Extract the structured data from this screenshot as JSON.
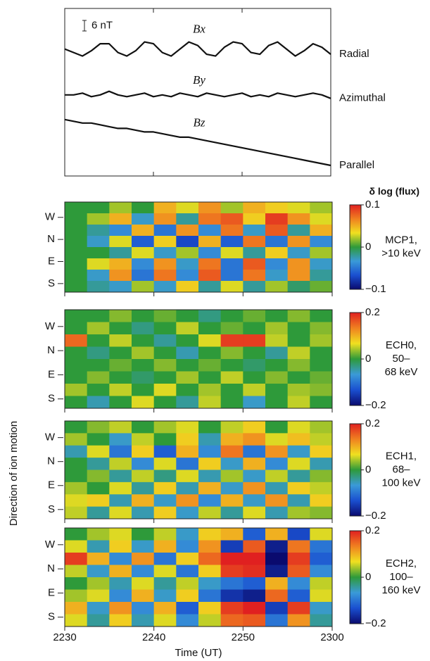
{
  "chart_data": [
    {
      "type": "line",
      "x": [
        0,
        1,
        2,
        3,
        4,
        5,
        6,
        7,
        8,
        9,
        10,
        11,
        12,
        13,
        14,
        15,
        16,
        17,
        18,
        19,
        20,
        21,
        22,
        23,
        24,
        25,
        26,
        27,
        28,
        29,
        30
      ],
      "xlim": [
        0,
        30
      ],
      "ylim": [
        0,
        95
      ],
      "scale_bar": {
        "value": 6,
        "label": "6 nT"
      },
      "series": [
        {
          "name": "Bx",
          "label": "Radial",
          "color": "#111111",
          "values": [
            72,
            70,
            68,
            71,
            75,
            75,
            70,
            68,
            71,
            76,
            75,
            70,
            68,
            72,
            76,
            74,
            69,
            68,
            73,
            76,
            75,
            70,
            69,
            74,
            76,
            72,
            68,
            71,
            75,
            73,
            69
          ]
        },
        {
          "name": "By",
          "label": "Azimuthal",
          "color": "#111111",
          "values": [
            46,
            46,
            47,
            45,
            46,
            48,
            46,
            45,
            46,
            47,
            45,
            46,
            45,
            47,
            46,
            45,
            47,
            46,
            45,
            46,
            47,
            45,
            46,
            45,
            47,
            46,
            45,
            46,
            47,
            46,
            44
          ]
        },
        {
          "name": "Bz",
          "label": "Parallel",
          "color": "#111111",
          "values": [
            32,
            31,
            30,
            30,
            29,
            28,
            27,
            27,
            26,
            25,
            25,
            24,
            23,
            22,
            22,
            21,
            20,
            19,
            18,
            17,
            16,
            15,
            14,
            13,
            12,
            11,
            10,
            9,
            8,
            7,
            6
          ]
        }
      ]
    },
    {
      "type": "heatmap",
      "colorbar_title": "δ log (flux)",
      "label": [
        "MCP1,",
        ">10 keV"
      ],
      "directions": [
        "W",
        "N",
        "E",
        "S"
      ],
      "xlim": [
        0,
        30
      ],
      "clim": [
        -0.1,
        0.1
      ],
      "cticks": [
        0.1,
        0,
        {
          "value": -0.1,
          "label": "−0.1"
        }
      ],
      "colorscale": [
        "#0a0a6e",
        "#1a4fd0",
        "#3a9ad8",
        "#2e9a3a",
        "#f0e020",
        "#f08020",
        "#e02020"
      ],
      "z": [
        [
          0,
          0,
          0.02,
          0,
          0.05,
          0.03,
          0.06,
          0.02,
          0.05,
          0.04,
          0.03,
          0.02
        ],
        [
          0,
          0.02,
          0.05,
          -0.03,
          0.06,
          -0.02,
          0.07,
          0.08,
          0.04,
          0.09,
          0.06,
          0.03
        ],
        [
          0,
          -0.02,
          -0.04,
          0.05,
          -0.05,
          0.06,
          -0.04,
          0.07,
          -0.03,
          0.08,
          -0.02,
          0.05
        ],
        [
          0,
          -0.03,
          0.03,
          -0.06,
          0.04,
          -0.07,
          0.05,
          -0.06,
          0.07,
          -0.05,
          0.06,
          -0.04
        ],
        [
          0,
          0,
          -0.02,
          0.03,
          -0.03,
          0.02,
          -0.04,
          0.03,
          -0.02,
          0.04,
          -0.03,
          0.02
        ],
        [
          0,
          0.03,
          0.05,
          -0.04,
          0.06,
          -0.03,
          0.07,
          -0.05,
          0.08,
          -0.04,
          0.06,
          -0.03
        ],
        [
          0,
          -0.03,
          0.06,
          -0.05,
          0.07,
          -0.04,
          0.08,
          -0.05,
          0.07,
          -0.03,
          0.06,
          -0.02
        ],
        [
          0,
          -0.02,
          -0.03,
          0.02,
          -0.03,
          0.04,
          -0.02,
          0.03,
          -0.02,
          0.02,
          -0.01,
          0.01
        ]
      ]
    },
    {
      "type": "heatmap",
      "label": [
        "ECH0,",
        "50–",
        "68 keV"
      ],
      "ylabel": "Direction of ion motion",
      "directions": [
        "W",
        "N",
        "E",
        "S"
      ],
      "xlim": [
        0,
        30
      ],
      "clim": [
        -0.2,
        0.2
      ],
      "cticks": [
        0.2,
        0,
        {
          "value": -0.2,
          "label": "−0.2"
        }
      ],
      "colorscale": [
        "#0a0a6e",
        "#1a4fd0",
        "#3a9ad8",
        "#2e9a3a",
        "#f0e020",
        "#f08020",
        "#e02020"
      ],
      "z": [
        [
          0,
          0,
          0.03,
          0,
          0.02,
          0,
          -0.03,
          0,
          0.02,
          0,
          0.03,
          0
        ],
        [
          0,
          0.04,
          0,
          -0.03,
          0,
          0.05,
          0,
          0.02,
          0,
          0.04,
          0,
          0.03
        ],
        [
          0.15,
          0,
          0.05,
          0,
          -0.04,
          0,
          0.06,
          0.18,
          0.18,
          0.05,
          0,
          0.04
        ],
        [
          0,
          -0.03,
          0,
          0.04,
          0,
          -0.05,
          0,
          0.03,
          0,
          -0.04,
          0.05,
          0
        ],
        [
          0,
          0,
          0.02,
          0,
          0.03,
          0,
          0.02,
          0,
          -0.02,
          0,
          0.03,
          0
        ],
        [
          0,
          0.03,
          0,
          -0.02,
          0,
          0.04,
          0,
          0.05,
          0,
          0.03,
          0,
          0.02
        ],
        [
          0.04,
          0,
          0.05,
          0,
          0.06,
          0,
          0.04,
          0,
          0.05,
          0,
          0.04,
          0.03
        ],
        [
          0,
          -0.05,
          0,
          0.06,
          0,
          -0.04,
          0.05,
          0,
          -0.06,
          0,
          0.05,
          0
        ]
      ]
    },
    {
      "type": "heatmap",
      "label": [
        "ECH1,",
        "68–",
        "100 keV"
      ],
      "directions": [
        "W",
        "N",
        "E",
        "S"
      ],
      "xlim": [
        0,
        30
      ],
      "clim": [
        -0.2,
        0.2
      ],
      "cticks": [
        0.2,
        0,
        {
          "value": -0.2,
          "label": "−0.2"
        }
      ],
      "colorscale": [
        "#0a0a6e",
        "#1a4fd0",
        "#3a9ad8",
        "#2e9a3a",
        "#f0e020",
        "#f08020",
        "#e02020"
      ],
      "z": [
        [
          0,
          0.03,
          0.05,
          0,
          0.04,
          0.06,
          0,
          0.05,
          0.08,
          0,
          0.06,
          0.04
        ],
        [
          0.04,
          0,
          -0.06,
          0.05,
          0,
          0.08,
          -0.05,
          0.1,
          0.12,
          0.06,
          0.09,
          0.05
        ],
        [
          -0.05,
          0.06,
          -0.1,
          0.08,
          -0.12,
          0.1,
          -0.08,
          0.14,
          -0.1,
          0.12,
          -0.06,
          0.08
        ],
        [
          0,
          -0.04,
          0.05,
          -0.08,
          0.06,
          -0.1,
          0.08,
          -0.06,
          0.1,
          -0.08,
          0.06,
          -0.05
        ],
        [
          0,
          0.03,
          -0.04,
          0.05,
          -0.03,
          0.06,
          -0.05,
          0.04,
          -0.06,
          0.05,
          -0.04,
          0.03
        ],
        [
          0.04,
          0,
          0.06,
          -0.04,
          0.08,
          -0.05,
          0.1,
          -0.06,
          0.12,
          -0.05,
          0.08,
          0.05
        ],
        [
          0.06,
          0.08,
          -0.05,
          0.1,
          -0.06,
          0.12,
          -0.08,
          0.1,
          -0.06,
          0.12,
          -0.05,
          0.08
        ],
        [
          0.05,
          -0.04,
          0.06,
          -0.05,
          0.08,
          -0.06,
          0.05,
          -0.04,
          0.06,
          -0.05,
          0.04,
          0.03
        ]
      ]
    },
    {
      "type": "heatmap",
      "label": [
        "ECH2,",
        "100–",
        "160 keV"
      ],
      "xlabel": "Time (UT)",
      "directions": [
        "W",
        "N",
        "E",
        "S"
      ],
      "xlim": [
        0,
        30
      ],
      "xticks": [
        {
          "value": 0,
          "label": "2230"
        },
        {
          "value": 10,
          "label": "2240"
        },
        {
          "value": 20,
          "label": "2250"
        },
        {
          "value": 30,
          "label": "2300"
        }
      ],
      "clim": [
        -0.2,
        0.2
      ],
      "cticks": [
        0.2,
        0,
        {
          "value": -0.2,
          "label": "−0.2"
        }
      ],
      "colorscale": [
        "#0a0a6e",
        "#1a4fd0",
        "#3a9ad8",
        "#2e9a3a",
        "#f0e020",
        "#f08020",
        "#e02020"
      ],
      "z": [
        [
          0,
          0.04,
          0.06,
          0,
          0.05,
          -0.06,
          0.08,
          0.1,
          -0.12,
          0.1,
          -0.14,
          0.06
        ],
        [
          0.06,
          -0.05,
          0.08,
          -0.06,
          0.1,
          -0.08,
          0.12,
          -0.15,
          0.16,
          -0.18,
          0.14,
          -0.1
        ],
        [
          0.18,
          0.1,
          -0.08,
          0.12,
          -0.1,
          0.08,
          0.15,
          0.2,
          0.2,
          -0.2,
          0.18,
          -0.12
        ],
        [
          0.05,
          -0.06,
          0.1,
          -0.08,
          0.06,
          -0.1,
          0.08,
          0.18,
          0.19,
          -0.18,
          0.16,
          -0.08
        ],
        [
          0,
          0.04,
          -0.05,
          0.06,
          -0.04,
          0.05,
          -0.06,
          -0.1,
          -0.12,
          0.1,
          -0.08,
          0.05
        ],
        [
          0.04,
          0.06,
          -0.08,
          0.1,
          -0.06,
          0.08,
          -0.1,
          -0.16,
          -0.18,
          0.15,
          -0.12,
          0.06
        ],
        [
          0.1,
          -0.06,
          0.12,
          -0.08,
          0.1,
          -0.12,
          0.08,
          0.18,
          0.2,
          -0.15,
          0.18,
          -0.06
        ],
        [
          0.06,
          -0.04,
          0.08,
          -0.05,
          0.06,
          -0.08,
          0.05,
          0.15,
          0.16,
          -0.1,
          0.12,
          -0.04
        ]
      ]
    }
  ]
}
